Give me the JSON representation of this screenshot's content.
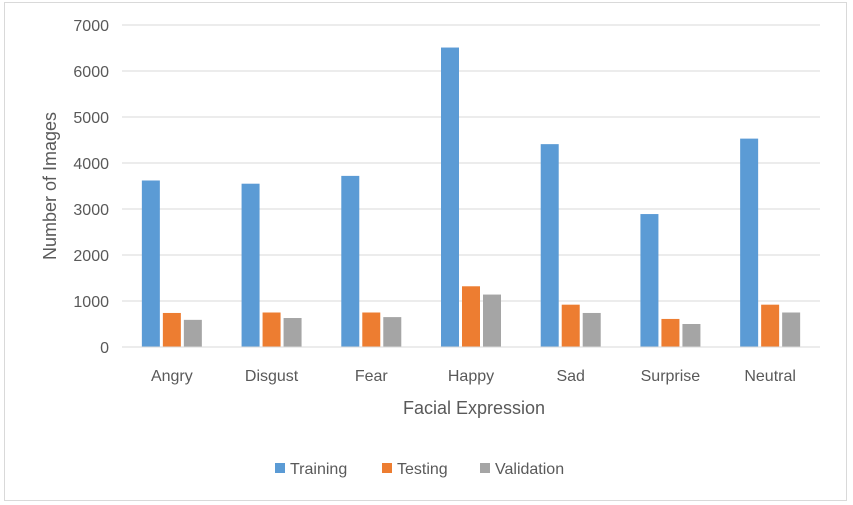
{
  "chart_data": {
    "type": "bar",
    "categories": [
      "Angry",
      "Disgust",
      "Fear",
      "Happy",
      "Sad",
      "Surprise",
      "Neutral"
    ],
    "series": [
      {
        "name": "Training",
        "color": "#5b9bd5",
        "values": [
          3620,
          3550,
          3720,
          6510,
          4410,
          2890,
          4530
        ]
      },
      {
        "name": "Testing",
        "color": "#ed7d31",
        "values": [
          740,
          750,
          750,
          1320,
          920,
          610,
          920
        ]
      },
      {
        "name": "Validation",
        "color": "#a5a5a5",
        "values": [
          590,
          630,
          650,
          1140,
          740,
          500,
          750
        ]
      }
    ],
    "xlabel": "Facial Expression",
    "ylabel": "Number of Images",
    "ylim": [
      0,
      7000
    ],
    "yticks": [
      "0",
      "1000",
      "2000",
      "3000",
      "4000",
      "5000",
      "6000",
      "7000"
    ],
    "grid": true,
    "legend_position": "bottom"
  }
}
